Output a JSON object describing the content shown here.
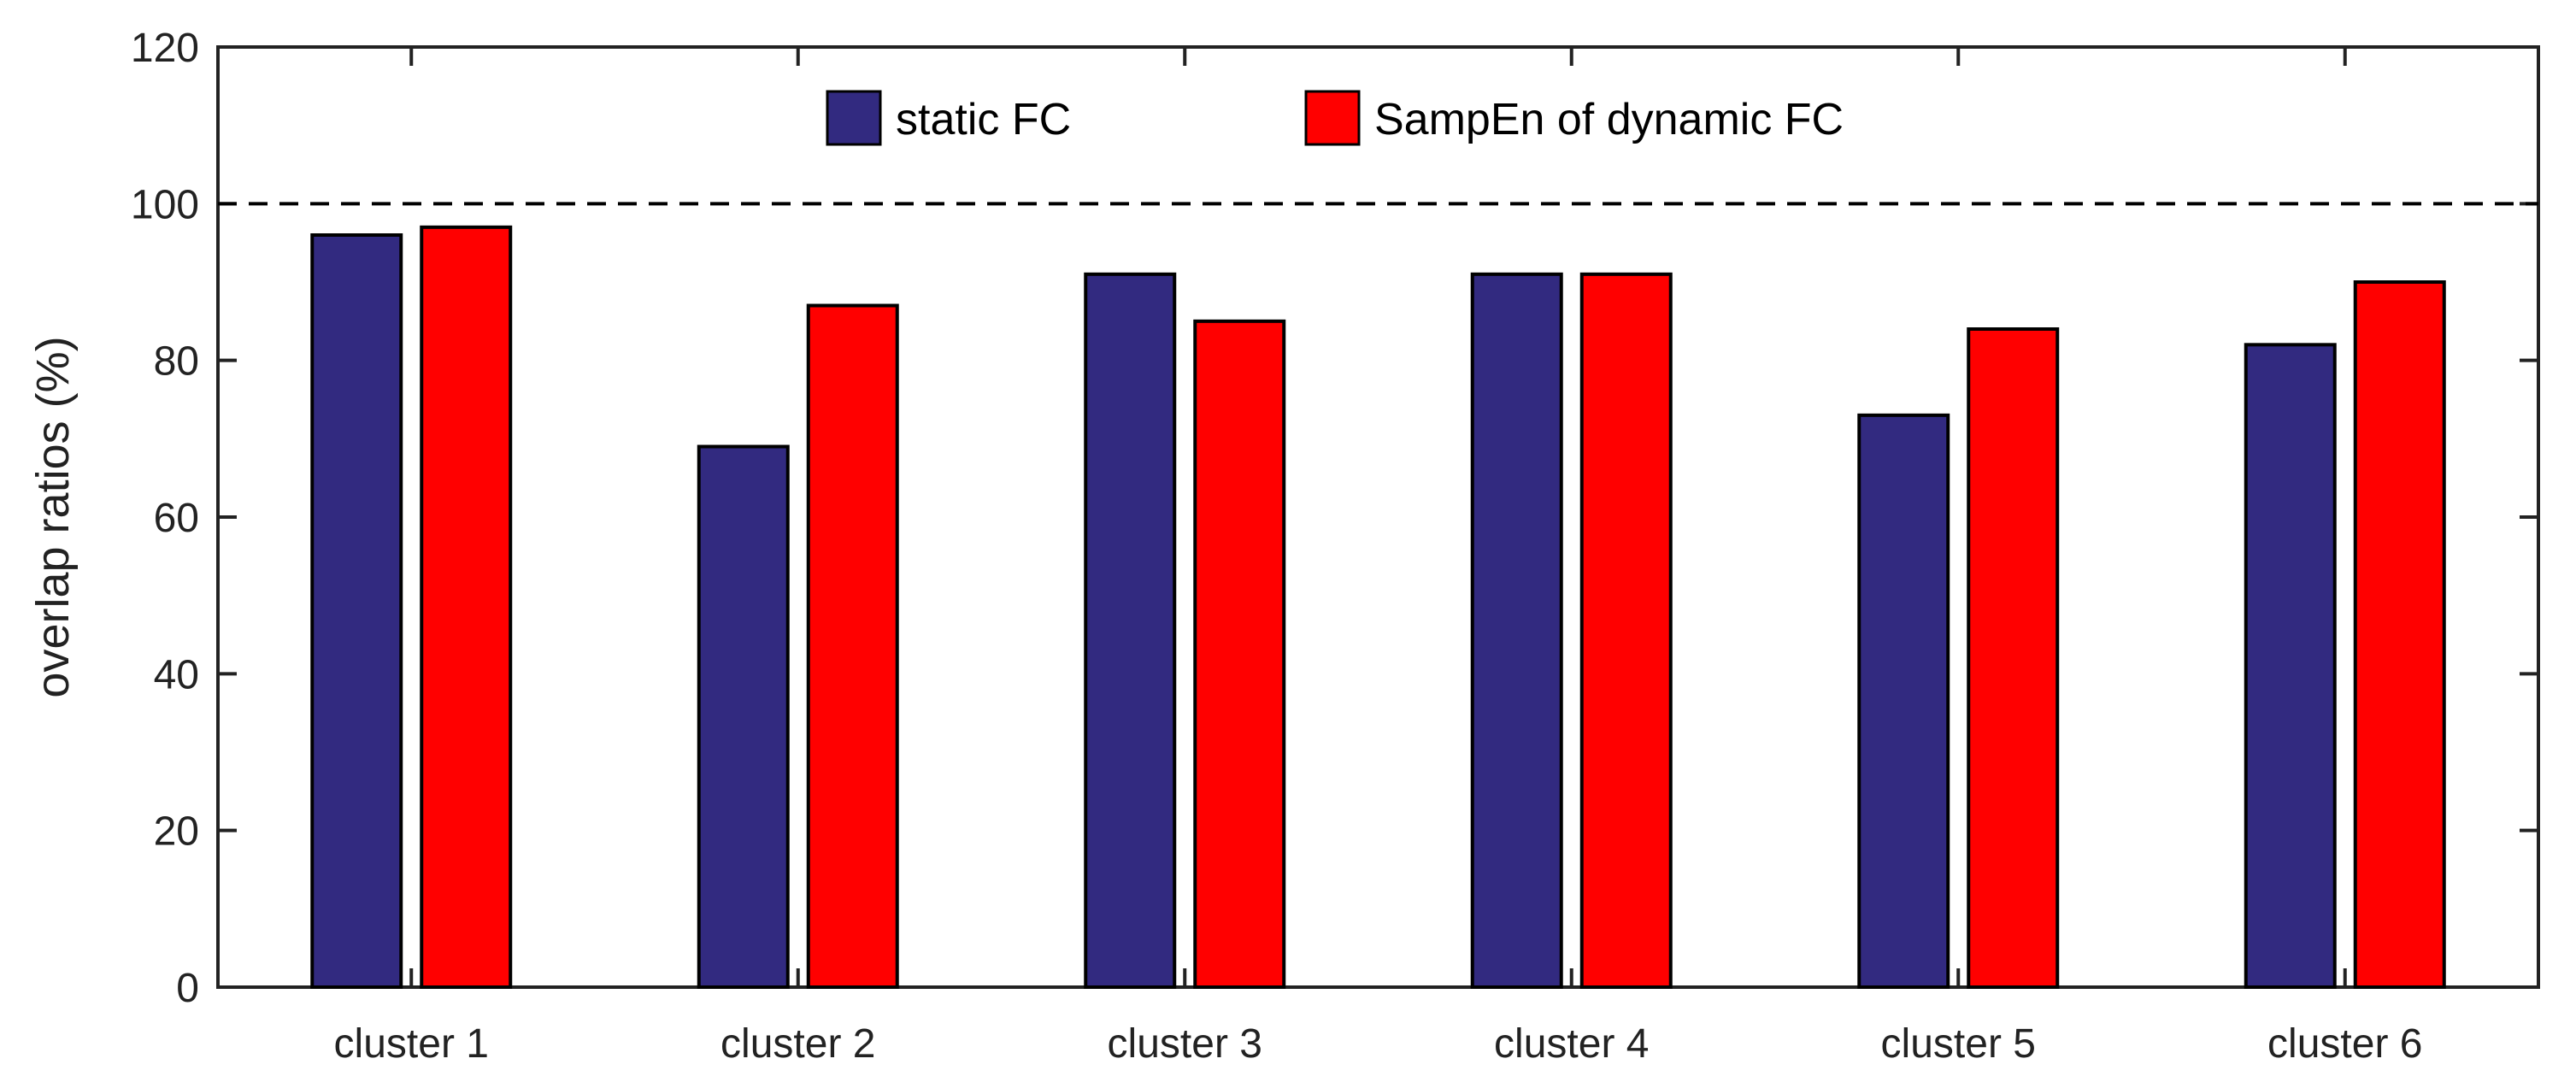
{
  "chart_data": {
    "type": "bar",
    "title": "",
    "xlabel": "",
    "ylabel": "overlap ratios (%)",
    "ylim": [
      0,
      120
    ],
    "yticks": [
      0,
      20,
      40,
      60,
      80,
      100,
      120
    ],
    "categories": [
      "cluster 1",
      "cluster 2",
      "cluster 3",
      "cluster 4",
      "cluster 5",
      "cluster 6"
    ],
    "series": [
      {
        "name": "static FC",
        "color": "#322a80",
        "values": [
          96,
          69,
          91,
          91,
          73,
          82
        ]
      },
      {
        "name": "SampEn of dynamic FC",
        "color": "#ff0000",
        "values": [
          97,
          87,
          85,
          91,
          84,
          90
        ]
      }
    ],
    "reference_line": {
      "value": 100,
      "style": "dashed"
    },
    "legend": {
      "position": "top-center",
      "orientation": "horizontal"
    },
    "grid": false
  }
}
